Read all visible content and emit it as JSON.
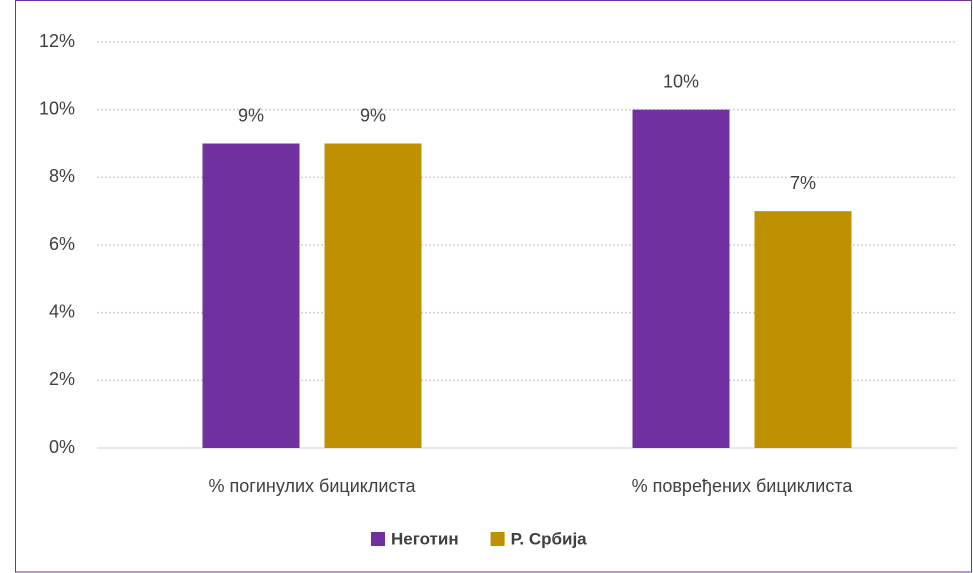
{
  "chart_data": {
    "type": "bar",
    "categories": [
      "% погинулих бициклиста",
      "% повређених бициклиста"
    ],
    "series": [
      {
        "name": "Неготин",
        "color": "#7030a0",
        "values": [
          9,
          10
        ],
        "value_labels": [
          "9%",
          "10%"
        ]
      },
      {
        "name": "Р. Србија",
        "color": "#bf9000",
        "values": [
          9,
          7
        ],
        "value_labels": [
          "9%",
          "7%"
        ]
      }
    ],
    "ylim": [
      0,
      12
    ],
    "yticks": [
      {
        "value": 0,
        "label": "0%"
      },
      {
        "value": 2,
        "label": "2%"
      },
      {
        "value": 4,
        "label": "4%"
      },
      {
        "value": 6,
        "label": "6%"
      },
      {
        "value": 8,
        "label": "8%"
      },
      {
        "value": 10,
        "label": "10%"
      },
      {
        "value": 12,
        "label": "12%"
      }
    ],
    "grid": true,
    "legend": "bottom"
  }
}
